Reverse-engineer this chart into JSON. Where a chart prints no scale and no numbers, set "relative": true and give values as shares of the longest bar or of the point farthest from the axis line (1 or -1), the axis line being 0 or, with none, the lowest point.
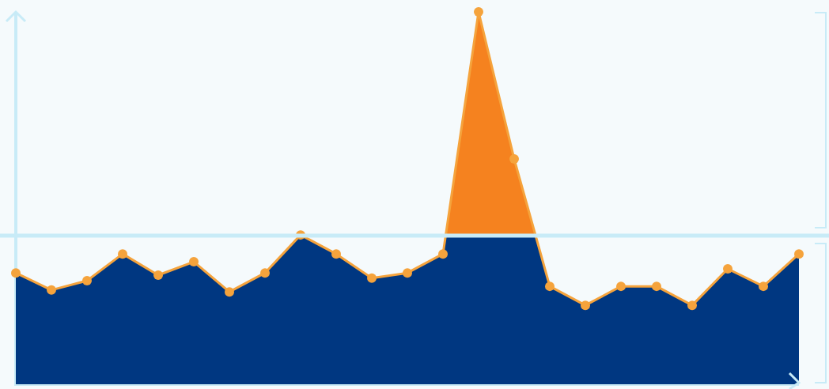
{
  "chart_data": {
    "type": "area",
    "relative": true,
    "tick_labels": false,
    "legend": false,
    "marker": "circle",
    "categories": [
      null,
      null,
      null,
      null,
      null,
      null,
      null,
      null,
      null,
      null,
      null,
      null,
      null,
      null,
      null,
      null,
      null,
      null,
      null,
      null,
      null,
      null,
      null
    ],
    "series": [
      {
        "color": "#003781",
        "values": [
          0.299,
          0.253,
          0.278,
          0.35,
          0.293,
          0.329,
          0.248,
          0.299,
          0.401,
          0.35,
          0.285,
          0.299,
          0.35,
          1,
          0.605,
          0.263,
          0.212,
          0.263,
          0.263,
          0.212,
          0.31,
          0.263,
          0.35
        ]
      }
    ],
    "ref_lines": [
      {
        "axis": "y",
        "value": 0.399,
        "color": "#c8ebf7"
      }
    ]
  }
}
